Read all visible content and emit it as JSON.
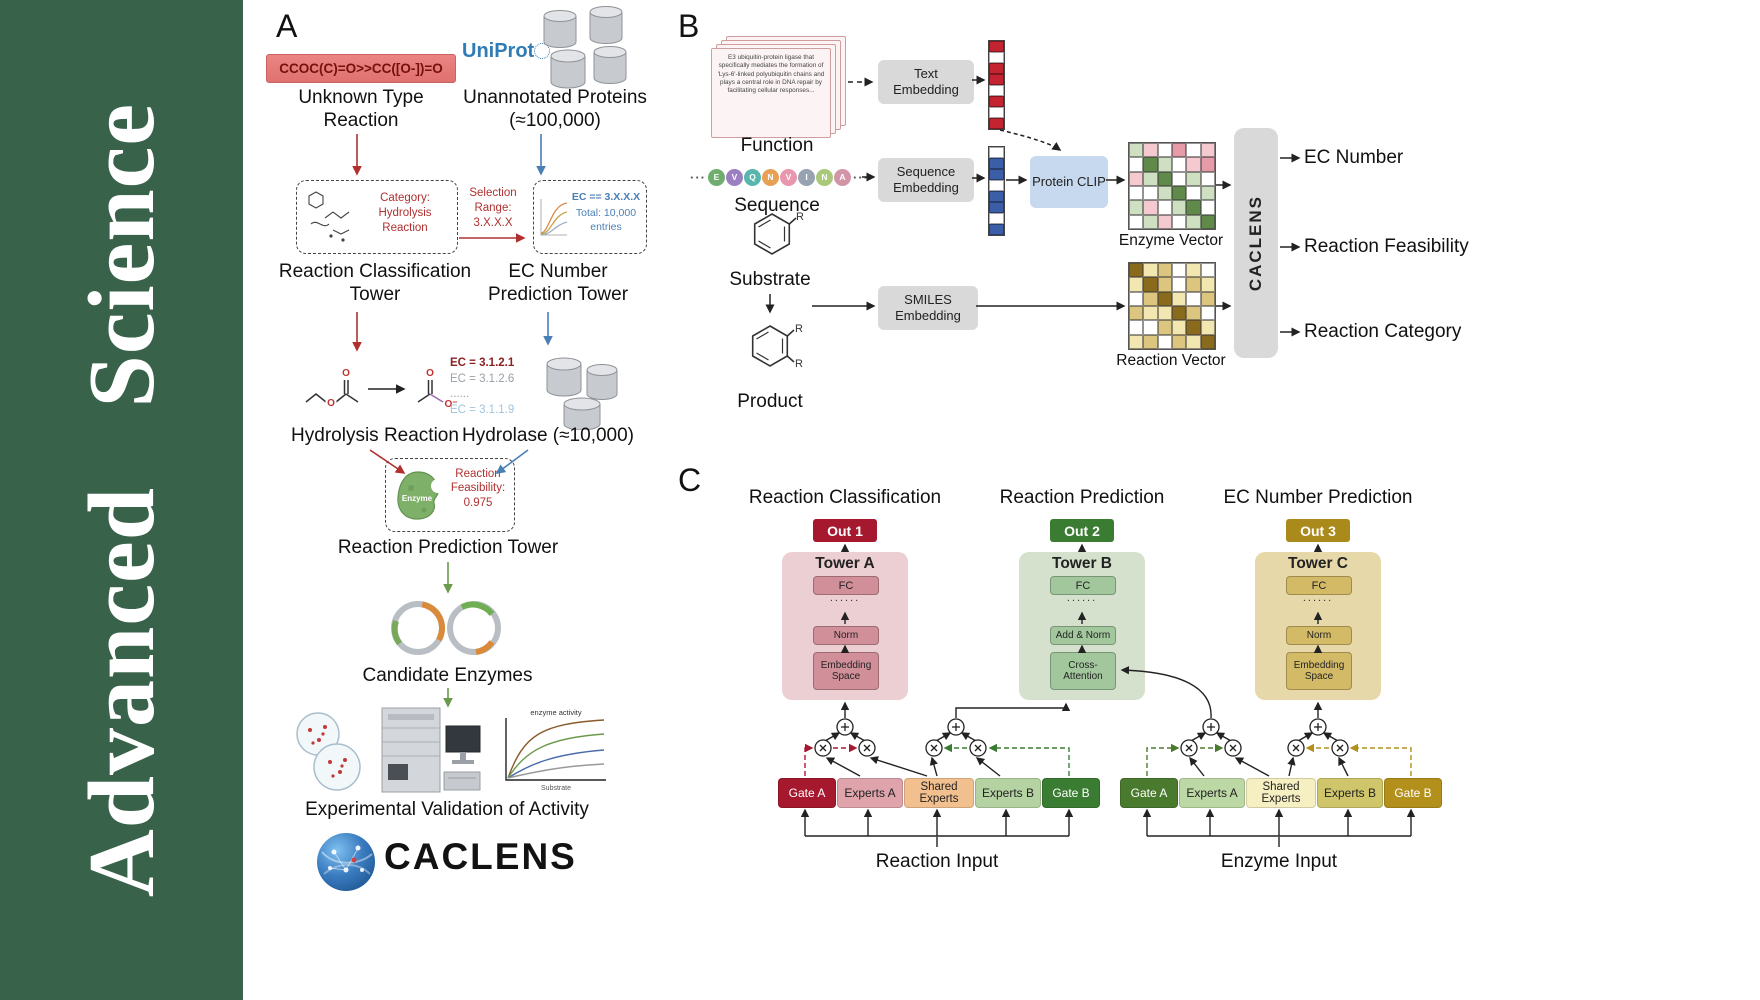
{
  "sidebar": {
    "journal": "Advanced Science"
  },
  "panelA": {
    "label": "A",
    "smiles": "CCOC(C)=O>>CC([O-])=O",
    "unknown": "Unknown Type Reaction",
    "uniprot": "UniProt",
    "unannotated": "Unannotated Proteins (≈100,000)",
    "category": "Category: Hydrolysis Reaction",
    "selection": "Selection Range: 3.X.X.X",
    "ec_filter": "EC == 3.X.X.X",
    "ec_total": "Total: 10,000 entries",
    "tower_classification": "Reaction Classification Tower",
    "tower_ec": "EC Number Prediction Tower",
    "ec_lines": [
      {
        "text": "EC = 3.1.2.1",
        "color": "#8a1f1f"
      },
      {
        "text": "EC = 3.1.2.6",
        "color": "#9aa0a6"
      },
      {
        "text": "......",
        "color": "#9aa0a6"
      },
      {
        "text": "EC = 3.1.1.9",
        "color": "#9fc4de"
      }
    ],
    "hydrolysis": "Hydrolysis Reaction",
    "hydrolase": "Hydrolase (≈10,000)",
    "enzyme": "Enzyme",
    "feasibility": "Reaction Feasibility: 0.975",
    "tower_prediction": "Reaction Prediction Tower",
    "candidates": "Candidate Enzymes",
    "plot_title": "enzyme activity",
    "plot_xlabel": "Substrate",
    "validation": "Experimental Validation of Activity",
    "logo": "CACLENS",
    "atom_o": "O",
    "atom_ominus": "O⁻"
  },
  "panelB": {
    "label": "B",
    "function_text": "E3 ubiquitin-protein ligase that specifically mediates the formation of 'Lys-6'-linked polyubiquitin chains and plays a central role in DNA repair by facilitating cellular responses...",
    "function": "Function",
    "text_embedding": "Text Embedding",
    "sequence": "Sequence",
    "sequence_embedding": "Sequence Embedding",
    "protein_clip": "Protein CLIP",
    "substrate": "Substrate",
    "product": "Product",
    "smiles_embedding": "SMILES Embedding",
    "enzyme_vector": "Enzyme Vector",
    "reaction_vector": "Reaction Vector",
    "caclens": "CACLENS",
    "out_ec": "EC Number",
    "out_feasibility": "Reaction Feasibility",
    "out_category": "Reaction Category",
    "ellipsis": "···",
    "r_label": "R",
    "sequence_circles": [
      {
        "letter": "E",
        "color": "#6fae6f"
      },
      {
        "letter": "V",
        "color": "#9b7fc0"
      },
      {
        "letter": "Q",
        "color": "#58b6ae"
      },
      {
        "letter": "N",
        "color": "#e8a055"
      },
      {
        "letter": "V",
        "color": "#e897ae"
      },
      {
        "letter": "I",
        "color": "#97a3b0"
      },
      {
        "letter": "N",
        "color": "#a9c87a"
      },
      {
        "letter": "A",
        "color": "#d295a8"
      }
    ],
    "text_vector": {
      "rows": [
        "r",
        "w",
        "r",
        "r",
        "w",
        "r",
        "w",
        "r"
      ],
      "palette": {
        "r": "#c42430",
        "w": "#ffffff"
      }
    },
    "seq_vector": {
      "rows": [
        "w",
        "b",
        "b",
        "w",
        "b",
        "b",
        "w",
        "b"
      ],
      "palette": {
        "b": "#3b5ea8",
        "w": "#ffffff"
      }
    },
    "enzyme_grid": {
      "rows": [
        "gpwPwp",
        "wGgwpP",
        "pgGwgw",
        "wwgGwg",
        "gpwgGw",
        "wgpwgG"
      ],
      "palette": {
        "w": "#ffffff",
        "p": "#f4c9cf",
        "P": "#e79aa7",
        "g": "#cfe0c2",
        "G": "#5f8a4a"
      }
    },
    "reaction_grid": {
      "rows": [
        "Dytwyw",
        "yDtwty",
        "wtDywt",
        "tyyDtw",
        "wwtyDy",
        "ytwtyD"
      ],
      "palette": {
        "w": "#ffffff",
        "y": "#f3e7b1",
        "t": "#dcc57e",
        "D": "#8a6b1e"
      }
    }
  },
  "panelC": {
    "label": "C",
    "columns": [
      {
        "header": "Reaction Classification",
        "out": "Out 1",
        "out_bg": "#a5182e",
        "tower": "Tower A",
        "panel_bg": "#eccfd3",
        "box_bg": "#d18f9a",
        "fc": "FC",
        "dots": "......",
        "mid": "Norm",
        "bottom": "Embedding Space"
      },
      {
        "header": "Reaction Prediction",
        "out": "Out 2",
        "out_bg": "#3a7d32",
        "tower": "Tower B",
        "panel_bg": "#d5e1cd",
        "box_bg": "#a3c79d",
        "fc": "FC",
        "dots": "......",
        "mid": "Add & Norm",
        "bottom": "Cross-Attention"
      },
      {
        "header": "EC Number Prediction",
        "out": "Out 3",
        "out_bg": "#ab8a1c",
        "tower": "Tower C",
        "panel_bg": "#e7d8a9",
        "box_bg": "#d3ba67",
        "fc": "FC",
        "dots": "......",
        "mid": "Norm",
        "bottom": "Embedding Space"
      }
    ],
    "left_group": [
      {
        "label": "Gate A",
        "bg": "#a5182e",
        "fg": "#ffffff"
      },
      {
        "label": "Experts A",
        "bg": "#dfa3ab",
        "fg": "#222222"
      },
      {
        "label": "Shared Experts",
        "bg": "#f2c08f",
        "fg": "#222222"
      },
      {
        "label": "Experts B",
        "bg": "#b5d3a2",
        "fg": "#222222"
      },
      {
        "label": "Gate B",
        "bg": "#3a7d32",
        "fg": "#ffffff"
      }
    ],
    "right_group": [
      {
        "label": "Gate A",
        "bg": "#4a7a2e",
        "fg": "#ffffff"
      },
      {
        "label": "Experts A",
        "bg": "#bcd8a4",
        "fg": "#222222"
      },
      {
        "label": "Shared Experts",
        "bg": "#f6efc2",
        "fg": "#222222"
      },
      {
        "label": "Experts B",
        "bg": "#cfc56b",
        "fg": "#222222"
      },
      {
        "label": "Gate B",
        "bg": "#b3901c",
        "fg": "#ffffff"
      }
    ],
    "reaction_input": "Reaction Input",
    "enzyme_input": "Enzyme Input"
  }
}
